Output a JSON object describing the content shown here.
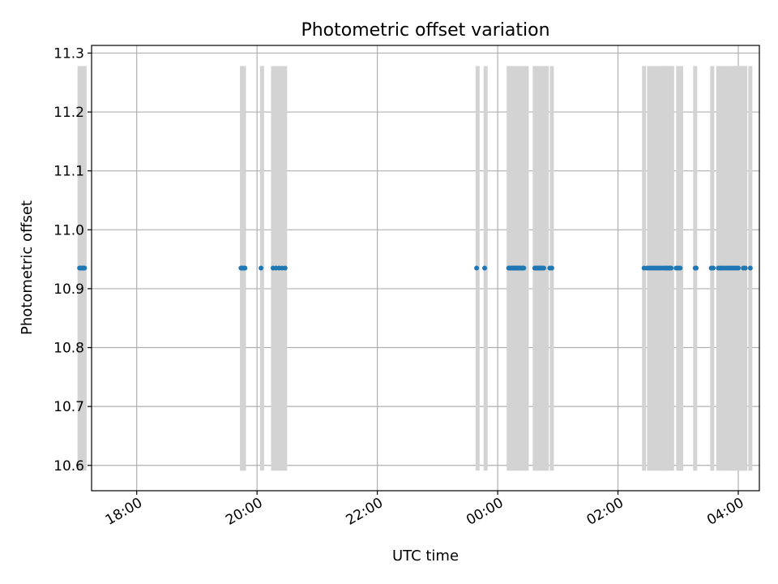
{
  "chart_data": {
    "type": "scatter",
    "title": "Photometric offset variation",
    "xlabel": "UTC time",
    "ylabel": "Photometric offset",
    "xlim": [
      "17:15",
      "04:21"
    ],
    "ylim": [
      10.557,
      11.313
    ],
    "x_ticks": [
      "18:00",
      "20:00",
      "22:00",
      "00:00",
      "02:00",
      "04:00"
    ],
    "y_ticks": [
      "10.6",
      "10.7",
      "10.8",
      "10.9",
      "11.0",
      "11.1",
      "11.2",
      "11.3"
    ],
    "grid": true,
    "legend": "none",
    "colors": {
      "points": "#1f77b4",
      "bands": "#d3d3d3",
      "grid": "#b0b0b0"
    },
    "bands": {
      "ymin": 10.591,
      "ymax": 11.278,
      "times": [
        "17:03",
        "17:06",
        "17:08",
        "19:45",
        "19:47",
        "20:05",
        "20:16",
        "20:19",
        "20:22",
        "20:25",
        "20:28",
        "23:40",
        "23:48",
        "00:11",
        "00:14",
        "00:17",
        "00:20",
        "00:23",
        "00:26",
        "00:29",
        "00:37",
        "00:40",
        "00:43",
        "00:46",
        "00:49",
        "00:54",
        "02:26",
        "02:31",
        "02:34",
        "02:37",
        "02:40",
        "02:43",
        "02:45",
        "02:48",
        "02:51",
        "02:54",
        "03:00",
        "03:03",
        "03:17",
        "03:34",
        "03:40",
        "03:43",
        "03:47",
        "03:50",
        "03:53",
        "03:56",
        "03:59",
        "04:02",
        "04:05",
        "04:07",
        "04:12"
      ]
    },
    "series": [
      {
        "x": [
          "17:03",
          "17:04",
          "17:05",
          "17:06",
          "17:07",
          "17:08",
          "19:44",
          "19:45",
          "19:46",
          "19:47",
          "19:48",
          "20:04",
          "20:16",
          "20:19",
          "20:22",
          "20:25",
          "20:28",
          "23:39",
          "23:47",
          "00:11",
          "00:12",
          "00:13",
          "00:14",
          "00:15",
          "00:16",
          "00:17",
          "00:18",
          "00:19",
          "00:20",
          "00:21",
          "00:22",
          "00:23",
          "00:24",
          "00:25",
          "00:26",
          "00:37",
          "00:38",
          "00:39",
          "00:40",
          "00:41",
          "00:42",
          "00:43",
          "00:44",
          "00:45",
          "00:46",
          "00:52",
          "00:54",
          "02:26",
          "02:29",
          "02:31",
          "02:33",
          "02:35",
          "02:37",
          "02:39",
          "02:41",
          "02:43",
          "02:45",
          "02:47",
          "02:48",
          "02:49",
          "02:51",
          "02:52",
          "02:53",
          "02:58",
          "03:00",
          "03:02",
          "03:17",
          "03:18",
          "03:33",
          "03:35",
          "03:40",
          "03:42",
          "03:44",
          "03:46",
          "03:48",
          "03:50",
          "03:52",
          "03:54",
          "03:56",
          "03:58",
          "04:00",
          "04:05",
          "04:07",
          "04:12"
        ],
        "y": 10.935
      }
    ]
  }
}
